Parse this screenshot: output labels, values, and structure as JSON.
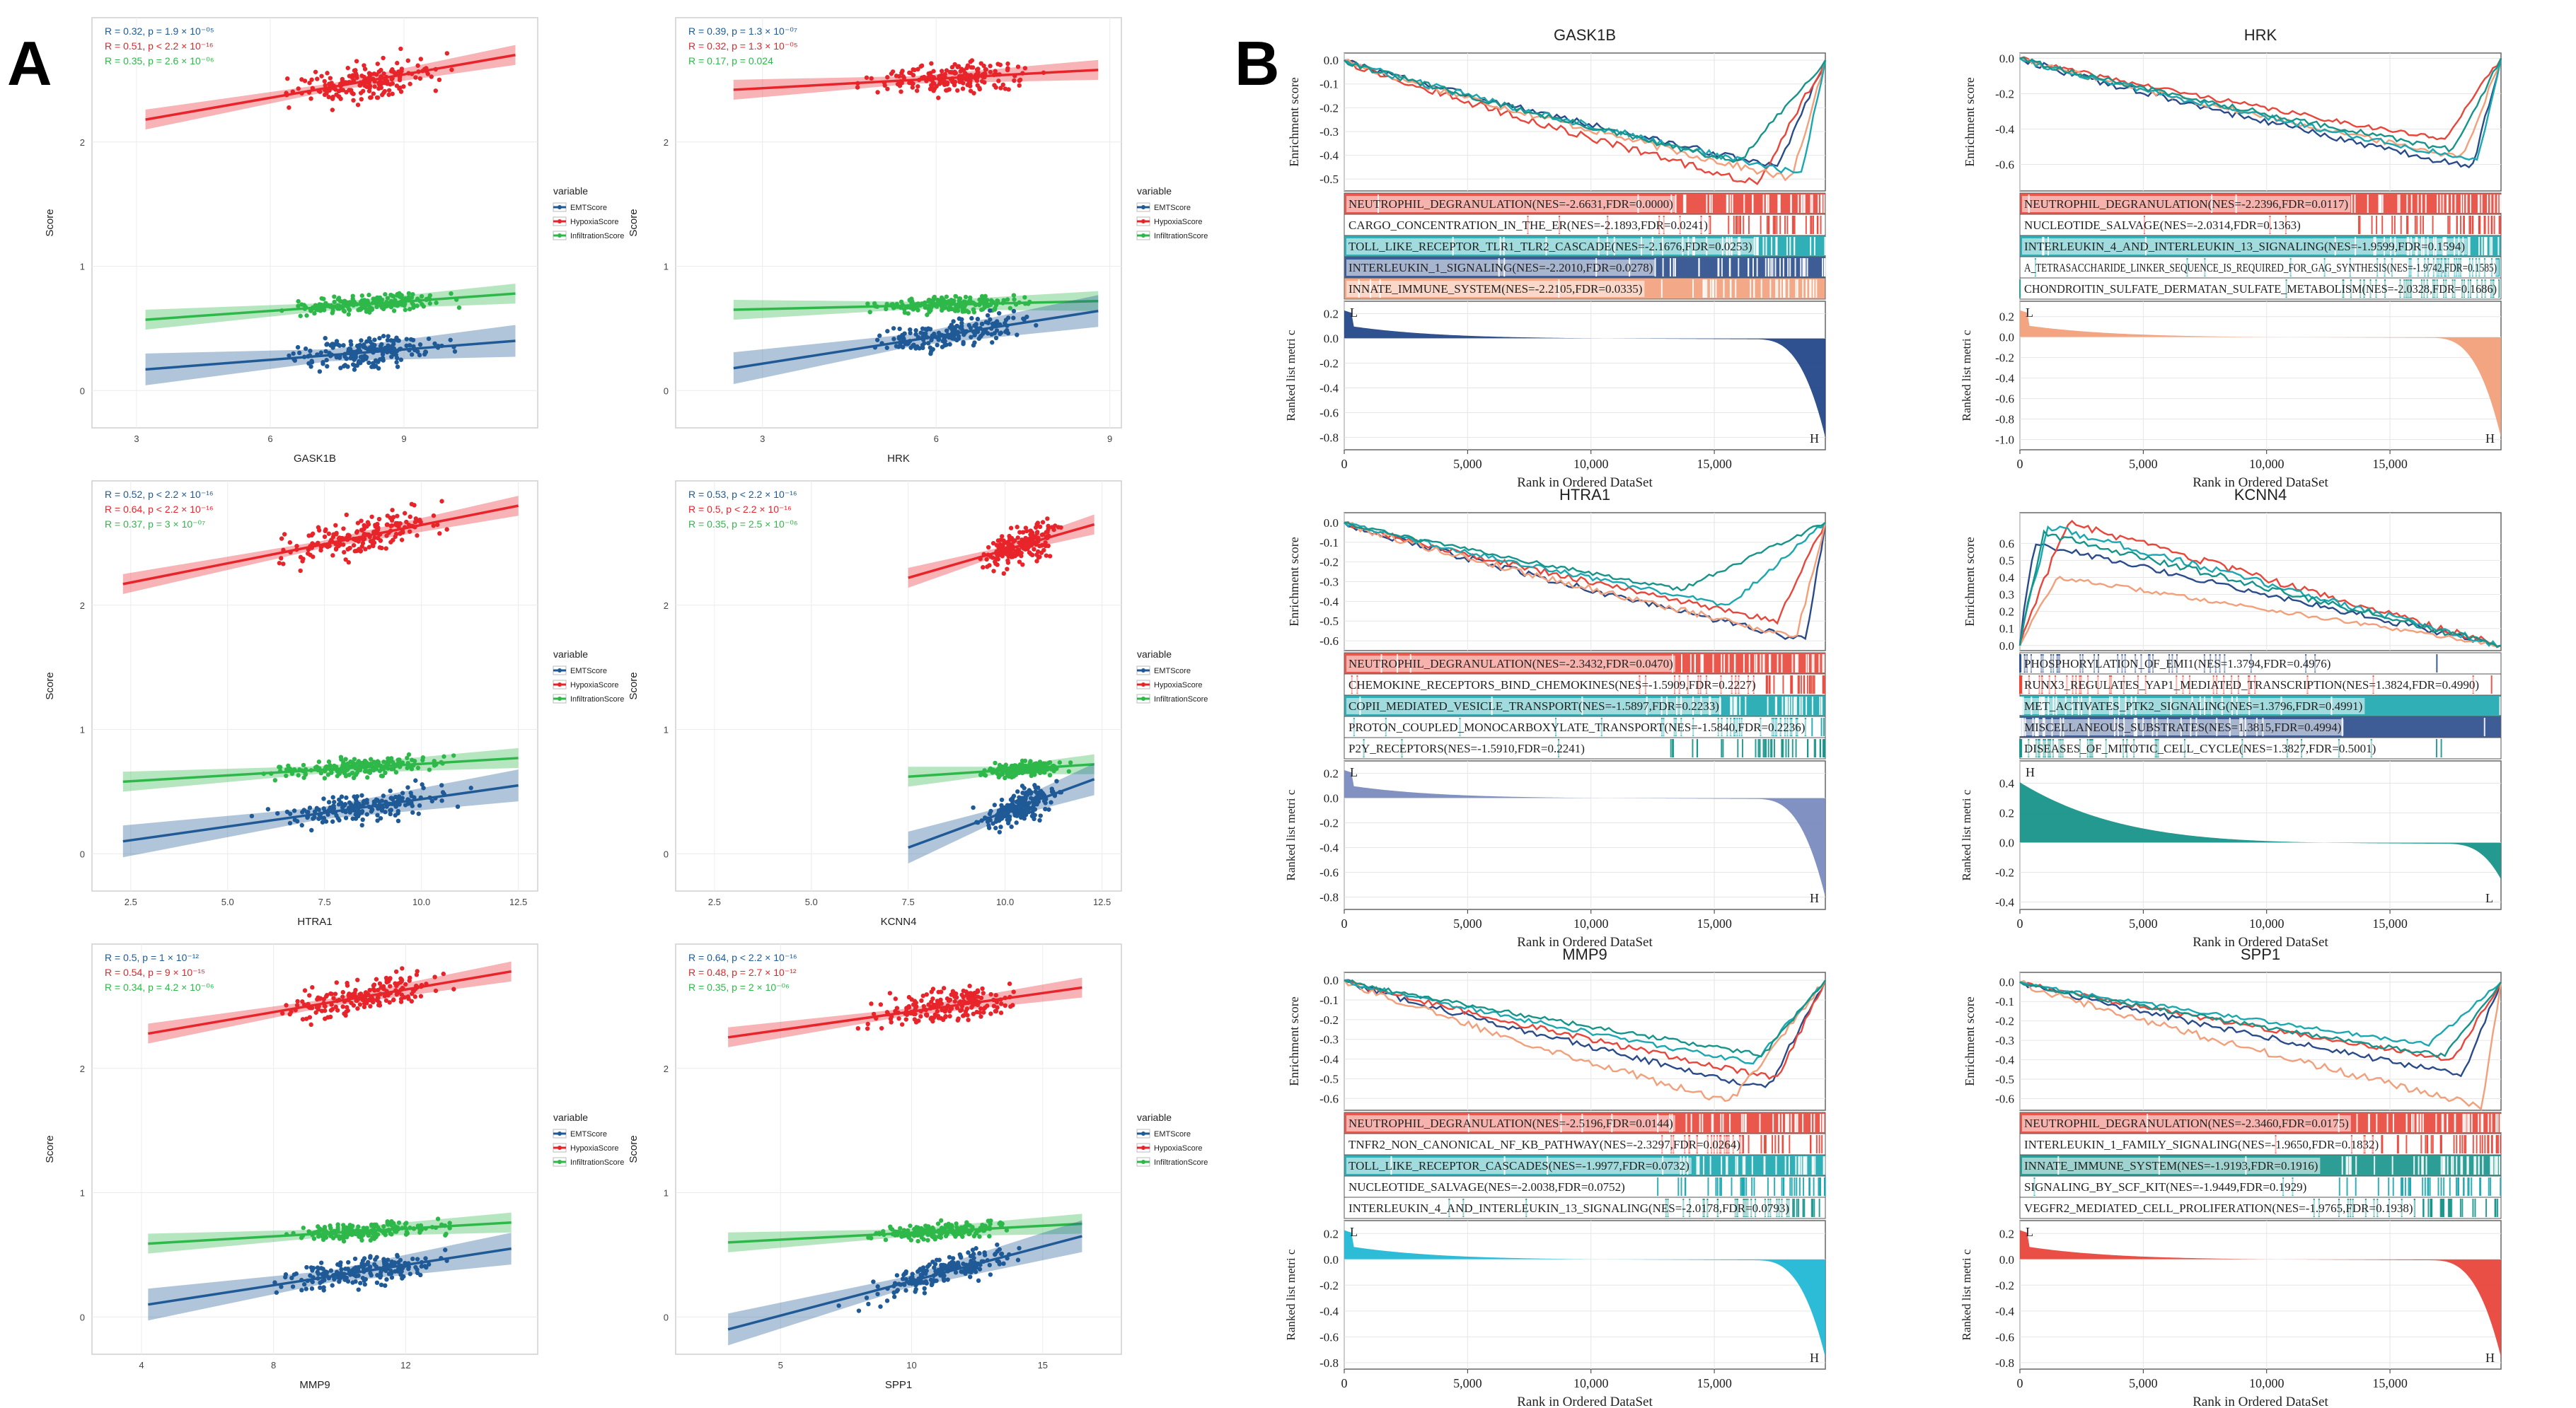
{
  "panels": {
    "a_label": "A",
    "b_label": "B"
  },
  "scatter_common": {
    "ylabel": "Score",
    "legend_title": "variable",
    "legend": [
      {
        "name": "EMTScore",
        "color": "#1f5a96"
      },
      {
        "name": "HypoxiaScore",
        "color": "#e8242b"
      },
      {
        "name": "InfiltrationScore",
        "color": "#2eb84a"
      }
    ],
    "yticks": [
      "0",
      "1",
      "2"
    ]
  },
  "gsea_common": {
    "es_label": "Enrichment score",
    "rank_label": "Ranked list metri c",
    "xlabel": "Rank in Ordered DataSet",
    "xticks": [
      "0",
      "5,000",
      "10,000",
      "15,000"
    ],
    "line_colors": [
      "#2a4b8a",
      "#e8463a",
      "#f2a07b",
      "#1aa7b0",
      "#17948a"
    ]
  },
  "chart_data": [
    {
      "type": "scatter",
      "panel": "A",
      "gene": "GASK1B",
      "xlabel": "GASK1B",
      "xticks": [
        "3",
        "6",
        "9"
      ],
      "xlim": [
        2,
        12
      ],
      "ylim": [
        -0.3,
        3
      ],
      "stats": [
        {
          "text": "R = 0.32, p = 1.9 × 10⁻⁰⁵",
          "color": "#1f5a96"
        },
        {
          "text": "R = 0.51, p < 2.2 × 10⁻¹⁶",
          "color": "#e8242b"
        },
        {
          "text": "R = 0.35, p = 2.6 × 10⁻⁰⁶",
          "color": "#2eb84a"
        }
      ],
      "series": [
        {
          "name": "HypoxiaScore",
          "x_range": [
            3.2,
            11.5
          ],
          "fit": [
            2.18,
            2.7
          ],
          "center": 2.45,
          "spread": 0.15
        },
        {
          "name": "InfiltrationScore",
          "x_range": [
            3.2,
            11.5
          ],
          "fit": [
            0.57,
            0.78
          ],
          "center": 0.67,
          "spread": 0.07
        },
        {
          "name": "EMTScore",
          "x_range": [
            3.2,
            11.5
          ],
          "fit": [
            0.17,
            0.4
          ],
          "center": 0.3,
          "spread": 0.13
        }
      ]
    },
    {
      "type": "scatter",
      "panel": "A",
      "gene": "HRK",
      "xlabel": "HRK",
      "xticks": [
        "3",
        "6",
        "9"
      ],
      "xlim": [
        1.5,
        9.2
      ],
      "ylim": [
        -0.3,
        3
      ],
      "stats": [
        {
          "text": "R = 0.39, p = 1.3 × 10⁻⁰⁷",
          "color": "#1f5a96"
        },
        {
          "text": "R = 0.32, p = 1.3 × 10⁻⁰⁵",
          "color": "#e8242b"
        },
        {
          "text": "R = 0.17, p = 0.024",
          "color": "#2eb84a"
        }
      ],
      "series": [
        {
          "name": "HypoxiaScore",
          "x_range": [
            2.5,
            8.8
          ],
          "fit": [
            2.42,
            2.58
          ],
          "center": 2.48,
          "spread": 0.13
        },
        {
          "name": "InfiltrationScore",
          "x_range": [
            2.5,
            8.8
          ],
          "fit": [
            0.65,
            0.72
          ],
          "center": 0.67,
          "spread": 0.06
        },
        {
          "name": "EMTScore",
          "x_range": [
            2.5,
            8.8
          ],
          "fit": [
            0.18,
            0.64
          ],
          "center": 0.3,
          "spread": 0.12
        }
      ]
    },
    {
      "type": "scatter",
      "panel": "A",
      "gene": "HTRA1",
      "xlabel": "HTRA1",
      "xticks": [
        "2.5",
        "5.0",
        "7.5",
        "10.0",
        "12.5"
      ],
      "xlim": [
        1.5,
        13
      ],
      "ylim": [
        -0.3,
        3
      ],
      "stats": [
        {
          "text": "R = 0.52, p < 2.2 × 10⁻¹⁶",
          "color": "#1f5a96"
        },
        {
          "text": "R = 0.64, p < 2.2 × 10⁻¹⁶",
          "color": "#e8242b"
        },
        {
          "text": "R = 0.37, p = 3 × 10⁻⁰⁷",
          "color": "#2eb84a"
        }
      ],
      "series": [
        {
          "name": "HypoxiaScore",
          "x_range": [
            2.3,
            12.5
          ],
          "fit": [
            2.17,
            2.8
          ],
          "center": 2.45,
          "spread": 0.14
        },
        {
          "name": "InfiltrationScore",
          "x_range": [
            2.3,
            12.5
          ],
          "fit": [
            0.58,
            0.77
          ],
          "center": 0.67,
          "spread": 0.07
        },
        {
          "name": "EMTScore",
          "x_range": [
            2.3,
            12.5
          ],
          "fit": [
            0.1,
            0.55
          ],
          "center": 0.3,
          "spread": 0.12
        }
      ]
    },
    {
      "type": "scatter",
      "panel": "A",
      "gene": "KCNN4",
      "xlabel": "KCNN4",
      "xticks": [
        "2.5",
        "5.0",
        "7.5",
        "10.0",
        "12.5"
      ],
      "xlim": [
        1.5,
        13
      ],
      "ylim": [
        -0.3,
        3
      ],
      "stats": [
        {
          "text": "R = 0.53, p < 2.2 × 10⁻¹⁶",
          "color": "#1f5a96"
        },
        {
          "text": "R = 0.5, p < 2.2 × 10⁻¹⁶",
          "color": "#e8242b"
        },
        {
          "text": "R = 0.35, p = 2.5 × 10⁻⁰⁶",
          "color": "#2eb84a"
        }
      ],
      "series": [
        {
          "name": "HypoxiaScore",
          "x_range": [
            7.5,
            12.3
          ],
          "fit": [
            2.22,
            2.65
          ],
          "center": 2.45,
          "spread": 0.14
        },
        {
          "name": "InfiltrationScore",
          "x_range": [
            7.5,
            12.3
          ],
          "fit": [
            0.62,
            0.72
          ],
          "center": 0.67,
          "spread": 0.06
        },
        {
          "name": "EMTScore",
          "x_range": [
            7.5,
            12.3
          ],
          "fit": [
            0.05,
            0.6
          ],
          "center": 0.3,
          "spread": 0.13
        }
      ]
    },
    {
      "type": "scatter",
      "panel": "A",
      "gene": "MMP9",
      "xlabel": "MMP9",
      "xticks": [
        "4",
        "8",
        "12"
      ],
      "xlim": [
        2.5,
        16
      ],
      "ylim": [
        -0.3,
        3
      ],
      "stats": [
        {
          "text": "R = 0.5, p = 1 × 10⁻¹²",
          "color": "#1f5a96"
        },
        {
          "text": "R = 0.54, p = 9 × 10⁻¹⁵",
          "color": "#e8242b"
        },
        {
          "text": "R = 0.34, p = 4.2 × 10⁻⁰⁶",
          "color": "#2eb84a"
        }
      ],
      "series": [
        {
          "name": "HypoxiaScore",
          "x_range": [
            4.2,
            15.2
          ],
          "fit": [
            2.28,
            2.78
          ],
          "center": 2.48,
          "spread": 0.14
        },
        {
          "name": "InfiltrationScore",
          "x_range": [
            4.2,
            15.2
          ],
          "fit": [
            0.59,
            0.76
          ],
          "center": 0.67,
          "spread": 0.06
        },
        {
          "name": "EMTScore",
          "x_range": [
            4.2,
            15.2
          ],
          "fit": [
            0.1,
            0.55
          ],
          "center": 0.3,
          "spread": 0.12
        }
      ]
    },
    {
      "type": "scatter",
      "panel": "A",
      "gene": "SPP1",
      "xlabel": "SPP1",
      "xticks": [
        "5",
        "10",
        "15"
      ],
      "xlim": [
        1,
        18
      ],
      "ylim": [
        -0.3,
        3
      ],
      "stats": [
        {
          "text": "R = 0.64, p < 2.2 × 10⁻¹⁶",
          "color": "#1f5a96"
        },
        {
          "text": "R = 0.48, p = 2.7 × 10⁻¹²",
          "color": "#e8242b"
        },
        {
          "text": "R = 0.35, p = 2 × 10⁻⁰⁶",
          "color": "#2eb84a"
        }
      ],
      "series": [
        {
          "name": "HypoxiaScore",
          "x_range": [
            3,
            16.5
          ],
          "fit": [
            2.25,
            2.65
          ],
          "center": 2.45,
          "spread": 0.14
        },
        {
          "name": "InfiltrationScore",
          "x_range": [
            3,
            16.5
          ],
          "fit": [
            0.6,
            0.75
          ],
          "center": 0.67,
          "spread": 0.06
        },
        {
          "name": "EMTScore",
          "x_range": [
            3,
            16.5
          ],
          "fit": [
            -0.1,
            0.65
          ],
          "center": 0.3,
          "spread": 0.12
        }
      ]
    },
    {
      "type": "gsea",
      "panel": "B",
      "title": "GASK1B",
      "es_ticks": [
        0.0,
        -0.1,
        -0.2,
        -0.3,
        -0.4,
        -0.5
      ],
      "es_lim": [
        -0.55,
        0.03
      ],
      "rank_ticks": [
        0.2,
        0.0,
        -0.2,
        -0.4,
        -0.6,
        -0.8
      ],
      "rank_lim": [
        -0.9,
        0.3
      ],
      "bar_color": "#24488a",
      "metric_sign": "neg",
      "curves": [
        {
          "color": "#2a4b8a",
          "min": -0.45,
          "at": 0.9
        },
        {
          "color": "#e8463a",
          "min": -0.52,
          "at": 0.86
        },
        {
          "color": "#f2a07b",
          "min": -0.5,
          "at": 0.93
        },
        {
          "color": "#1aa7b0",
          "min": -0.48,
          "at": 0.95
        },
        {
          "color": "#17948a",
          "min": -0.43,
          "at": 0.82
        }
      ],
      "pathways": [
        {
          "text": "NEUTROPHIL_DEGRANULATION(NES=-2.6631,FDR=0.0000)",
          "color": "#e8463a"
        },
        {
          "text": "CARGO_CONCENTRATION_IN_THE_ER(NES=-2.1893,FDR=0.0241)",
          "color": "#ffffff"
        },
        {
          "text": "TOLL_LIKE_RECEPTOR_TLR1_TLR2_CASCADE(NES=-2.1676,FDR=0.0253)",
          "color": "#1aa7b0"
        },
        {
          "text": "INTERLEUKIN_1_SIGNALING(NES=-2.2010,FDR=0.0278)",
          "color": "#2a4b8a"
        },
        {
          "text": "INNATE_IMMUNE_SYSTEM(NES=-2.2105,FDR=0.0335)",
          "color": "#f2a07b"
        }
      ]
    },
    {
      "type": "gsea",
      "panel": "B",
      "title": "HRK",
      "es_ticks": [
        0.0,
        -0.2,
        -0.4,
        -0.6
      ],
      "es_lim": [
        -0.75,
        0.03
      ],
      "rank_ticks": [
        0.2,
        0.0,
        -0.2,
        -0.4,
        -0.6,
        -0.8,
        -1.0
      ],
      "rank_lim": [
        -1.1,
        0.35
      ],
      "bar_color": "#f2a07b",
      "metric_sign": "neg",
      "curves": [
        {
          "color": "#2a4b8a",
          "min": -0.62,
          "at": 0.94
        },
        {
          "color": "#e8463a",
          "min": -0.46,
          "at": 0.88
        },
        {
          "color": "#f2a07b",
          "min": -0.56,
          "at": 0.92
        },
        {
          "color": "#1aa7b0",
          "min": -0.58,
          "at": 0.95
        },
        {
          "color": "#17948a",
          "min": -0.52,
          "at": 0.9
        }
      ],
      "pathways": [
        {
          "text": "NEUTROPHIL_DEGRANULATION(NES=-2.2396,FDR=0.0117)",
          "color": "#e8463a"
        },
        {
          "text": "NUCLEOTIDE_SALVAGE(NES=-2.0314,FDR=0.1363)",
          "color": "#ffffff"
        },
        {
          "text": "INTERLEUKIN_4_AND_INTERLEUKIN_13_SIGNALING(NES=-1.9599,FDR=0.1594)",
          "color": "#1aa7b0"
        },
        {
          "text": "A_TETRASACCHARIDE_LINKER_SEQUENCE_IS_REQUIRED_FOR_GAG_SYNTHESIS(NES=-1.9742,FDR=0.1585)",
          "color": "#ffffff"
        },
        {
          "text": "CHONDROITIN_SULFATE_DERMATAN_SULFATE_METABOLISM(NES=-2.0328,FDR=0.1686)",
          "color": "#ffffff"
        }
      ]
    },
    {
      "type": "gsea",
      "panel": "B",
      "title": "HTRA1",
      "es_ticks": [
        0.0,
        -0.1,
        -0.2,
        -0.3,
        -0.4,
        -0.5,
        -0.6
      ],
      "es_lim": [
        -0.65,
        0.05
      ],
      "rank_ticks": [
        0.2,
        0.0,
        -0.2,
        -0.4,
        -0.6,
        -0.8
      ],
      "rank_lim": [
        -0.9,
        0.3
      ],
      "bar_color": "#7a8cbf",
      "metric_sign": "neg",
      "curves": [
        {
          "color": "#2a4b8a",
          "min": -0.6,
          "at": 0.96
        },
        {
          "color": "#e8463a",
          "min": -0.5,
          "at": 0.9
        },
        {
          "color": "#f2a07b",
          "min": -0.58,
          "at": 0.94
        },
        {
          "color": "#1aa7b0",
          "min": -0.42,
          "at": 0.8
        },
        {
          "color": "#17948a",
          "min": -0.34,
          "at": 0.7
        }
      ],
      "pathways": [
        {
          "text": "NEUTROPHIL_DEGRANULATION(NES=-2.3432,FDR=0.0470)",
          "color": "#e8463a"
        },
        {
          "text": "CHEMOKINE_RECEPTORS_BIND_CHEMOKINES(NES=-1.5909,FDR=0.2227)",
          "color": "#ffffff"
        },
        {
          "text": "COPII_MEDIATED_VESICLE_TRANSPORT(NES=-1.5897,FDR=0.2233)",
          "color": "#1aa7b0"
        },
        {
          "text": "PROTON_COUPLED_MONOCARBOXYLATE_TRANSPORT(NES=-1.5840,FDR=0.2236)",
          "color": "#ffffff"
        },
        {
          "text": "P2Y_RECEPTORS(NES=-1.5910,FDR=0.2241)",
          "color": "#ffffff"
        }
      ]
    },
    {
      "type": "gsea",
      "panel": "B",
      "title": "KCNN4",
      "es_ticks": [
        0.6,
        0.5,
        0.4,
        0.3,
        0.2,
        0.1,
        0.0
      ],
      "es_lim": [
        -0.03,
        0.78
      ],
      "rank_ticks": [
        0.4,
        0.2,
        0.0,
        -0.2,
        -0.4
      ],
      "rank_lim": [
        -0.45,
        0.55
      ],
      "bar_color": "#17948a",
      "metric_sign": "pos",
      "curves": [
        {
          "color": "#2a4b8a",
          "max": 0.6,
          "at": 0.03
        },
        {
          "color": "#e8463a",
          "max": 0.72,
          "at": 0.1
        },
        {
          "color": "#f2a07b",
          "max": 0.4,
          "at": 0.08
        },
        {
          "color": "#1aa7b0",
          "max": 0.7,
          "at": 0.06
        },
        {
          "color": "#17948a",
          "max": 0.66,
          "at": 0.05
        }
      ],
      "pathways": [
        {
          "text": "PHOSPHORYLATION_OF_EMI1(NES=1.3794,FDR=0.4976)",
          "color": "#ffffff"
        },
        {
          "text": "RUNX3_REGULATES_YAP1_MEDIATED_TRANSCRIPTION(NES=1.3824,FDR=0.4990)",
          "color": "#ffffff"
        },
        {
          "text": "MET_ACTIVATES_PTK2_SIGNALING(NES=1.3796,FDR=0.4991)",
          "color": "#1aa7b0"
        },
        {
          "text": "MISCELLANEOUS_SUBSTRATES(NES=1.3815,FDR=0.4994)",
          "color": "#2a4b8a"
        },
        {
          "text": "DISEASES_OF_MITOTIC_CELL_CYCLE(NES=1.3827,FDR=0.5001)",
          "color": "#ffffff"
        }
      ]
    },
    {
      "type": "gsea",
      "panel": "B",
      "title": "MMP9",
      "es_ticks": [
        0.0,
        -0.1,
        -0.2,
        -0.3,
        -0.4,
        -0.5,
        -0.6
      ],
      "es_lim": [
        -0.66,
        0.04
      ],
      "rank_ticks": [
        0.2,
        0.0,
        -0.2,
        -0.4,
        -0.6,
        -0.8
      ],
      "rank_lim": [
        -0.85,
        0.3
      ],
      "bar_color": "#22b8d6",
      "metric_sign": "neg",
      "curves": [
        {
          "color": "#2a4b8a",
          "min": -0.55,
          "at": 0.88
        },
        {
          "color": "#e8463a",
          "min": -0.5,
          "at": 0.9
        },
        {
          "color": "#f2a07b",
          "min": -0.62,
          "at": 0.8
        },
        {
          "color": "#1aa7b0",
          "min": -0.42,
          "at": 0.85
        },
        {
          "color": "#17948a",
          "min": -0.38,
          "at": 0.87
        }
      ],
      "pathways": [
        {
          "text": "NEUTROPHIL_DEGRANULATION(NES=-2.5196,FDR=0.0144)",
          "color": "#e8463a"
        },
        {
          "text": "TNFR2_NON_CANONICAL_NF_KB_PATHWAY(NES=-2.3297,FDR=0.0264)",
          "color": "#ffffff"
        },
        {
          "text": "TOLL_LIKE_RECEPTOR_CASCADES(NES=-1.9977,FDR=0.0732)",
          "color": "#1aa7b0"
        },
        {
          "text": "NUCLEOTIDE_SALVAGE(NES=-2.0038,FDR=0.0752)",
          "color": "#ffffff"
        },
        {
          "text": "INTERLEUKIN_4_AND_INTERLEUKIN_13_SIGNALING(NES=-2.0178,FDR=0.0793)",
          "color": "#ffffff"
        }
      ]
    },
    {
      "type": "gsea",
      "panel": "B",
      "title": "SPP1",
      "es_ticks": [
        0.0,
        -0.1,
        -0.2,
        -0.3,
        -0.4,
        -0.5,
        -0.6
      ],
      "es_lim": [
        -0.66,
        0.05
      ],
      "rank_ticks": [
        0.2,
        0.0,
        -0.2,
        -0.4,
        -0.6,
        -0.8
      ],
      "rank_lim": [
        -0.85,
        0.3
      ],
      "bar_color": "#e8463a",
      "metric_sign": "neg",
      "curves": [
        {
          "color": "#2a4b8a",
          "min": -0.48,
          "at": 0.92
        },
        {
          "color": "#e8463a",
          "min": -0.4,
          "at": 0.9
        },
        {
          "color": "#f2a07b",
          "min": -0.64,
          "at": 0.96
        },
        {
          "color": "#1aa7b0",
          "min": -0.32,
          "at": 0.85
        },
        {
          "color": "#17948a",
          "min": -0.38,
          "at": 0.88
        }
      ],
      "pathways": [
        {
          "text": "NEUTROPHIL_DEGRANULATION(NES=-2.3460,FDR=0.0175)",
          "color": "#e8463a"
        },
        {
          "text": "INTERLEUKIN_1_FAMILY_SIGNALING(NES=-1.9650,FDR=0.1832)",
          "color": "#ffffff"
        },
        {
          "text": "INNATE_IMMUNE_SYSTEM(NES=-1.9193,FDR=0.1916)",
          "color": "#17948a"
        },
        {
          "text": "SIGNALING_BY_SCF_KIT(NES=-1.9449,FDR=0.1929)",
          "color": "#ffffff"
        },
        {
          "text": "VEGFR2_MEDIATED_CELL_PROLIFERATION(NES=-1.9765,FDR=0.1938)",
          "color": "#ffffff"
        }
      ]
    }
  ]
}
